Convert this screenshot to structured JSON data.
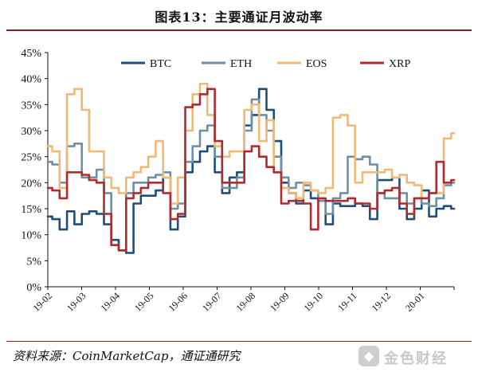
{
  "title": "图表13：主要通证月波动率",
  "source": "资料来源：CoinMarketCap，通证通研究",
  "brand": {
    "mark": "◆",
    "text": "金色财经"
  },
  "chart_data": {
    "type": "line",
    "ylim": [
      0,
      45
    ],
    "y_ticks": [
      0,
      5,
      10,
      15,
      20,
      25,
      30,
      35,
      40,
      45
    ],
    "y_tick_labels": [
      "0%",
      "5%",
      "10%",
      "15%",
      "20%",
      "25%",
      "30%",
      "35%",
      "40%",
      "45%"
    ],
    "x_ticks": [
      "19-02",
      "19-03",
      "19-04",
      "19-05",
      "19-06",
      "19-07",
      "19-08",
      "19-09",
      "19-10",
      "19-11",
      "19-12",
      "20-01"
    ],
    "legend_position": "top",
    "series": [
      {
        "name": "BTC",
        "color": "#1f4e79",
        "values": [
          13.5,
          13,
          11,
          14.5,
          12,
          14,
          14.5,
          14,
          12,
          9,
          7,
          6.5,
          16,
          17.5,
          17.5,
          18.5,
          21,
          11,
          13.5,
          22,
          24,
          26,
          27,
          22,
          18,
          21,
          22,
          31,
          33,
          38,
          34,
          28,
          20,
          18,
          16,
          18.5,
          17,
          16.5,
          12,
          16,
          15.5,
          15.5,
          16,
          15.5,
          13,
          20.5,
          20.5,
          21,
          15,
          13,
          15,
          18.5,
          13.5,
          15,
          15.5,
          15
        ]
      },
      {
        "name": "ETH",
        "color": "#6f8fa3",
        "values": [
          24,
          23.5,
          20,
          27,
          27.5,
          21,
          21,
          22.5,
          18,
          8,
          7,
          18,
          20,
          20,
          21,
          21.5,
          22,
          15,
          16,
          24,
          27,
          30,
          31,
          25,
          19,
          19,
          21,
          30,
          36,
          33,
          30,
          25,
          21,
          19,
          20,
          19.5,
          18.5,
          16.5,
          14,
          17,
          18,
          25,
          24.5,
          25,
          23.5,
          18,
          17,
          17,
          18,
          16,
          17,
          16,
          15.5,
          17,
          19.5,
          20
        ]
      },
      {
        "name": "EOS",
        "color": "#f0b978",
        "values": [
          27,
          26,
          19,
          37,
          38,
          34,
          26,
          26,
          21,
          19,
          18,
          21,
          22,
          23,
          25,
          28,
          21,
          16,
          21,
          30,
          37,
          39,
          33,
          27,
          25,
          26,
          26,
          34,
          35,
          28,
          32,
          22,
          19,
          18,
          17,
          20,
          18.5,
          18,
          19,
          32.5,
          33,
          31,
          20,
          22,
          22,
          22,
          22.5,
          21,
          21.5,
          20,
          19.5,
          17,
          18,
          18,
          28.5,
          29.5
        ]
      },
      {
        "name": "XRP",
        "color": "#b22a2e",
        "values": [
          19,
          18.5,
          17,
          22,
          22,
          21.5,
          20.5,
          20,
          14,
          8,
          7,
          17,
          18,
          19,
          20,
          20,
          18,
          13,
          14,
          34.5,
          35,
          37,
          38,
          28,
          20,
          20,
          20,
          26,
          27,
          25,
          23,
          22,
          16,
          16.5,
          16.5,
          16,
          11,
          17,
          16.5,
          16.5,
          16.5,
          17,
          16,
          16,
          15,
          18,
          18.5,
          19,
          16,
          14,
          17,
          17,
          18,
          24,
          20,
          20.5
        ]
      }
    ]
  }
}
